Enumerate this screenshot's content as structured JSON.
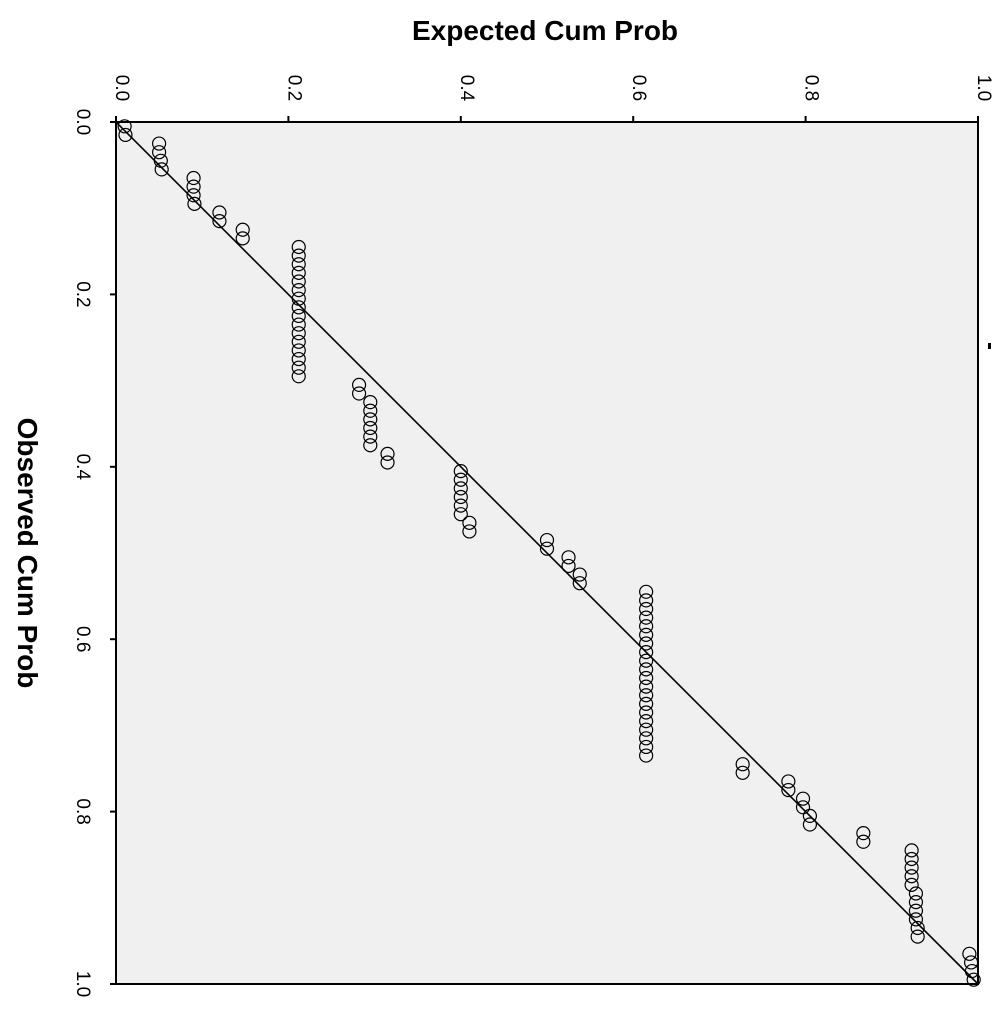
{
  "chart_data": {
    "type": "scatter",
    "title": "",
    "xlabel": "Expected Cum Prob",
    "ylabel": "Observed Cum Prob",
    "xlim": [
      0,
      1
    ],
    "ylim": [
      0,
      1
    ],
    "x_ticks": [
      "0.0",
      "0.2",
      "0.4",
      "0.6",
      "0.8",
      "1.0"
    ],
    "y_ticks": [
      "0.0",
      "0.2",
      "0.4",
      "0.6",
      "0.8",
      "1.0"
    ],
    "x_tick_values": [
      0,
      0.2,
      0.4,
      0.6,
      0.8,
      1.0
    ],
    "y_tick_values": [
      0,
      0.2,
      0.4,
      0.6,
      0.8,
      1.0
    ],
    "orientation": "rotated 90 degrees clockwise",
    "reference_line": [
      [
        0,
        0
      ],
      [
        1,
        1
      ]
    ],
    "grid": false,
    "legend": "none",
    "background_color": "#f0f0f0",
    "marker": "open circle",
    "points": [
      [
        0.01,
        0.005
      ],
      [
        0.011,
        0.015
      ],
      [
        0.05,
        0.025
      ],
      [
        0.05,
        0.035
      ],
      [
        0.052,
        0.045
      ],
      [
        0.053,
        0.055
      ],
      [
        0.09,
        0.065
      ],
      [
        0.09,
        0.075
      ],
      [
        0.09,
        0.085
      ],
      [
        0.091,
        0.095
      ],
      [
        0.12,
        0.105
      ],
      [
        0.12,
        0.115
      ],
      [
        0.147,
        0.125
      ],
      [
        0.147,
        0.135
      ],
      [
        0.212,
        0.145
      ],
      [
        0.212,
        0.155
      ],
      [
        0.212,
        0.165
      ],
      [
        0.212,
        0.175
      ],
      [
        0.212,
        0.185
      ],
      [
        0.212,
        0.195
      ],
      [
        0.212,
        0.205
      ],
      [
        0.212,
        0.215
      ],
      [
        0.212,
        0.225
      ],
      [
        0.212,
        0.235
      ],
      [
        0.212,
        0.245
      ],
      [
        0.212,
        0.255
      ],
      [
        0.212,
        0.265
      ],
      [
        0.212,
        0.275
      ],
      [
        0.212,
        0.285
      ],
      [
        0.212,
        0.295
      ],
      [
        0.282,
        0.305
      ],
      [
        0.282,
        0.315
      ],
      [
        0.295,
        0.325
      ],
      [
        0.295,
        0.335
      ],
      [
        0.295,
        0.345
      ],
      [
        0.295,
        0.355
      ],
      [
        0.295,
        0.365
      ],
      [
        0.295,
        0.375
      ],
      [
        0.315,
        0.385
      ],
      [
        0.315,
        0.395
      ],
      [
        0.4,
        0.405
      ],
      [
        0.4,
        0.415
      ],
      [
        0.4,
        0.425
      ],
      [
        0.4,
        0.435
      ],
      [
        0.4,
        0.445
      ],
      [
        0.4,
        0.455
      ],
      [
        0.41,
        0.465
      ],
      [
        0.41,
        0.475
      ],
      [
        0.5,
        0.485
      ],
      [
        0.5,
        0.495
      ],
      [
        0.525,
        0.505
      ],
      [
        0.525,
        0.515
      ],
      [
        0.538,
        0.525
      ],
      [
        0.538,
        0.535
      ],
      [
        0.615,
        0.545
      ],
      [
        0.615,
        0.555
      ],
      [
        0.615,
        0.565
      ],
      [
        0.615,
        0.575
      ],
      [
        0.615,
        0.585
      ],
      [
        0.615,
        0.595
      ],
      [
        0.615,
        0.605
      ],
      [
        0.615,
        0.615
      ],
      [
        0.615,
        0.625
      ],
      [
        0.615,
        0.635
      ],
      [
        0.615,
        0.645
      ],
      [
        0.615,
        0.655
      ],
      [
        0.615,
        0.665
      ],
      [
        0.615,
        0.675
      ],
      [
        0.615,
        0.685
      ],
      [
        0.615,
        0.695
      ],
      [
        0.615,
        0.705
      ],
      [
        0.615,
        0.715
      ],
      [
        0.615,
        0.725
      ],
      [
        0.615,
        0.735
      ],
      [
        0.727,
        0.745
      ],
      [
        0.727,
        0.755
      ],
      [
        0.78,
        0.765
      ],
      [
        0.78,
        0.775
      ],
      [
        0.797,
        0.785
      ],
      [
        0.797,
        0.795
      ],
      [
        0.805,
        0.805
      ],
      [
        0.805,
        0.815
      ],
      [
        0.867,
        0.825
      ],
      [
        0.867,
        0.835
      ],
      [
        0.923,
        0.845
      ],
      [
        0.923,
        0.855
      ],
      [
        0.923,
        0.865
      ],
      [
        0.923,
        0.875
      ],
      [
        0.923,
        0.885
      ],
      [
        0.928,
        0.895
      ],
      [
        0.928,
        0.905
      ],
      [
        0.928,
        0.915
      ],
      [
        0.928,
        0.925
      ],
      [
        0.93,
        0.935
      ],
      [
        0.93,
        0.945
      ],
      [
        0.99,
        0.965
      ],
      [
        0.992,
        0.975
      ],
      [
        0.993,
        0.985
      ],
      [
        0.995,
        0.995
      ]
    ]
  }
}
